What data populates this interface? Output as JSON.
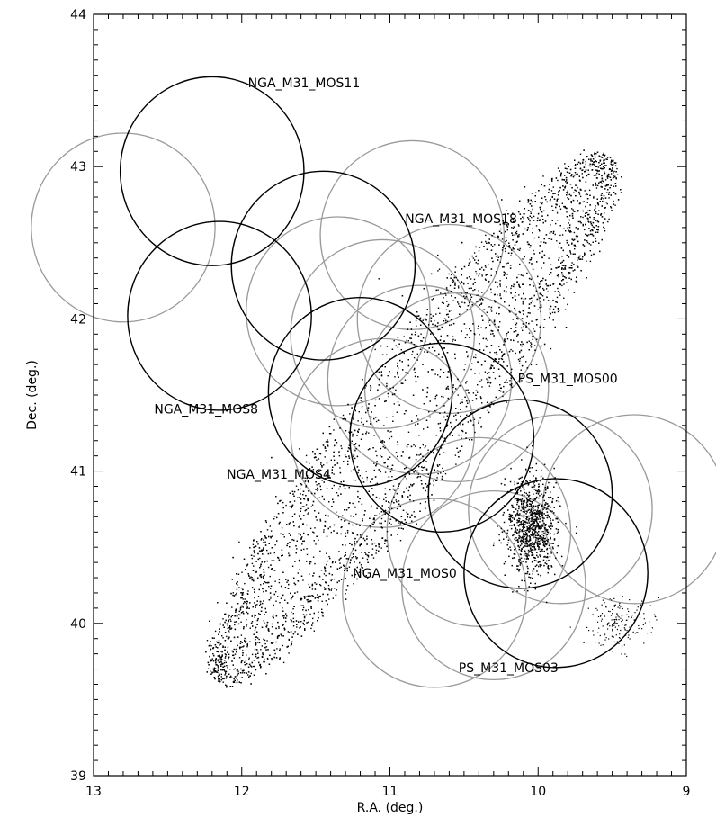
{
  "chart_data": {
    "type": "scatter",
    "xlabel": "R.A. (deg.)",
    "ylabel": "Dec. (deg.)",
    "xlim": [
      13,
      9
    ],
    "ylim": [
      39,
      44
    ],
    "x_ticks": [
      "13",
      "12",
      "11",
      "10",
      "9"
    ],
    "y_ticks": [
      "39",
      "40",
      "41",
      "42",
      "43",
      "44"
    ],
    "colors": {
      "primary_circle": "#000000",
      "secondary_circle": "#9a9a9a",
      "points": "#000000"
    },
    "field_radius_deg": 0.62,
    "primary_fields": [
      {
        "ra": 12.2,
        "dec": 42.97
      },
      {
        "ra": 12.15,
        "dec": 42.02
      },
      {
        "ra": 11.45,
        "dec": 42.35
      },
      {
        "ra": 11.2,
        "dec": 41.52
      },
      {
        "ra": 10.65,
        "dec": 41.22
      },
      {
        "ra": 10.12,
        "dec": 40.85
      },
      {
        "ra": 9.88,
        "dec": 40.33
      }
    ],
    "secondary_fields": [
      {
        "ra": 12.8,
        "dec": 42.6
      },
      {
        "ra": 11.35,
        "dec": 42.05
      },
      {
        "ra": 11.05,
        "dec": 41.9
      },
      {
        "ra": 10.85,
        "dec": 42.55
      },
      {
        "ra": 10.6,
        "dec": 42.0
      },
      {
        "ra": 11.05,
        "dec": 41.25
      },
      {
        "ra": 10.4,
        "dec": 40.6
      },
      {
        "ra": 10.7,
        "dec": 40.2
      },
      {
        "ra": 10.3,
        "dec": 40.25
      },
      {
        "ra": 9.85,
        "dec": 40.75
      },
      {
        "ra": 9.35,
        "dec": 40.75
      },
      {
        "ra": 10.8,
        "dec": 41.6
      },
      {
        "ra": 10.55,
        "dec": 41.55
      }
    ],
    "labels": [
      {
        "text": "NGA_M31_MOS11",
        "ra": 11.58,
        "dec": 43.52
      },
      {
        "text": "NGA_M31_MOS18",
        "ra": 10.52,
        "dec": 42.63
      },
      {
        "text": "PS_M31_MOS00",
        "ra": 9.8,
        "dec": 41.58
      },
      {
        "text": "NGA_M31_MOS8",
        "ra": 12.24,
        "dec": 41.38
      },
      {
        "text": "NGA_M31_MOS4",
        "ra": 11.75,
        "dec": 40.95
      },
      {
        "text": "NGA_M31_MOS0",
        "ra": 10.9,
        "dec": 40.3
      },
      {
        "text": "PS_M31_MOS03",
        "ra": 10.2,
        "dec": 39.68
      }
    ],
    "galaxy": {
      "center_ra": 10.85,
      "center_dec": 41.35,
      "major_extent_deg": 2.15,
      "minor_extent_deg": 0.42,
      "position_angle_deg": 37,
      "approx_points": 5200
    }
  }
}
